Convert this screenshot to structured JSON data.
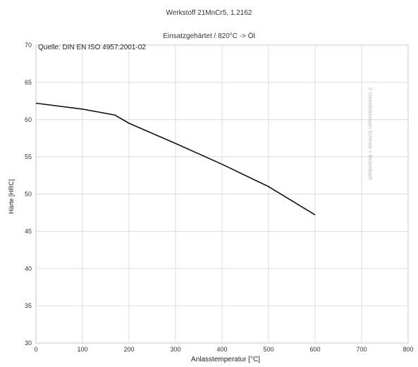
{
  "chart_data": {
    "type": "line",
    "title": "Werkstoff 21MnCr5, 1.2162",
    "subtitle": "Einsatzgehärtet / 820°C -> Öl",
    "annotation": "Quelle: DIN EN ISO 4957:2001-02",
    "watermark": "© Dienstleistungen Schmolz + Bickenbach",
    "xlabel": "Anlasstemperatur [°C]",
    "ylabel": "Härte [HRC]",
    "xlim": [
      0,
      800
    ],
    "ylim": [
      30,
      70
    ],
    "xticks": [
      "0",
      "100",
      "200",
      "300",
      "400",
      "500",
      "600",
      "700",
      "800"
    ],
    "yticks": [
      "30",
      "35",
      "40",
      "45",
      "50",
      "55",
      "60",
      "65",
      "70"
    ],
    "grid": true,
    "series": [
      {
        "x": [
          0,
          100,
          170,
          200,
          300,
          400,
          500,
          600
        ],
        "y": [
          62.2,
          61.4,
          60.6,
          59.5,
          56.8,
          54.0,
          51.0,
          47.2
        ]
      }
    ]
  }
}
